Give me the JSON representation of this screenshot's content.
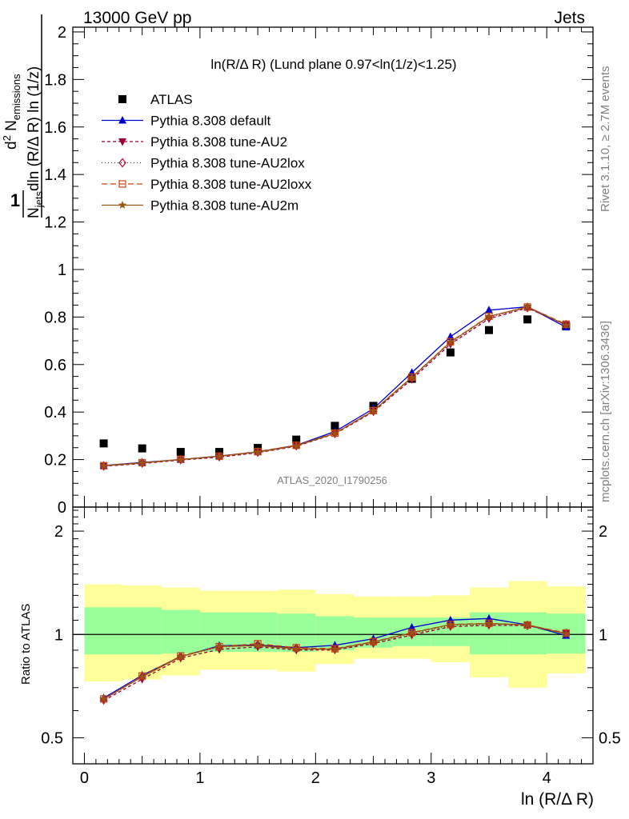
{
  "header": {
    "left": "13000 GeV pp",
    "right": "Jets"
  },
  "side_labels": {
    "rivet": "Rivet 3.1.10, ≥ 2.7M events",
    "mcplots": "mcplots.cern.ch [arXiv:1306.3436]"
  },
  "chart_data": [
    {
      "type": "scatter",
      "title": "ln(R/Δ R) (Lund plane 0.97<ln(1/z)<1.25)",
      "ylabel": "1/N_jets dN_emissions/dln(R/ΔR)dln(1/z)",
      "watermark": "ATLAS_2020_I1790256",
      "xlim": [
        -0.1,
        4.4
      ],
      "ylim": [
        0,
        2.02
      ],
      "yticks": [
        0,
        0.2,
        0.4,
        0.6,
        0.8,
        1,
        1.2,
        1.4,
        1.6,
        1.8,
        2
      ],
      "x": [
        0.167,
        0.5,
        0.833,
        1.167,
        1.5,
        1.833,
        2.167,
        2.5,
        2.833,
        3.167,
        3.5,
        3.833,
        4.167
      ],
      "legend_position": "top-left",
      "series": [
        {
          "name": "ATLAS",
          "style": "data",
          "color": "#000000",
          "marker": "square",
          "values": [
            0.268,
            0.247,
            0.232,
            0.232,
            0.249,
            0.284,
            0.342,
            0.426,
            0.54,
            0.651,
            0.745,
            0.79,
            0.762
          ]
        },
        {
          "name": "Pythia 8.308 default",
          "color": "#0000cc",
          "marker": "triangle",
          "dash": "",
          "values": [
            0.175,
            0.188,
            0.2,
            0.215,
            0.232,
            0.26,
            0.318,
            0.414,
            0.566,
            0.717,
            0.829,
            0.843,
            0.757
          ]
        },
        {
          "name": "Pythia 8.308 tune-AU2",
          "color": "#990033",
          "marker": "triangle-down",
          "dash": "4,3",
          "values": [
            0.172,
            0.183,
            0.198,
            0.21,
            0.229,
            0.256,
            0.308,
            0.401,
            0.538,
            0.686,
            0.793,
            0.838,
            0.767
          ]
        },
        {
          "name": "Pythia 8.308 tune-AU2lox",
          "color": "#aa1133",
          "marker": "diamond-open",
          "dash": "1,3",
          "values": [
            0.173,
            0.186,
            0.2,
            0.213,
            0.232,
            0.259,
            0.31,
            0.404,
            0.543,
            0.691,
            0.798,
            0.84,
            0.768
          ]
        },
        {
          "name": "Pythia 8.308 tune-AU2loxx",
          "color": "#cc4411",
          "marker": "square-open",
          "dash": "7,4",
          "values": [
            0.174,
            0.187,
            0.201,
            0.214,
            0.234,
            0.26,
            0.311,
            0.406,
            0.547,
            0.696,
            0.803,
            0.842,
            0.77
          ]
        },
        {
          "name": "Pythia 8.308 tune-AU2m",
          "color": "#995511",
          "marker": "star",
          "dash": "",
          "values": [
            0.174,
            0.186,
            0.2,
            0.214,
            0.231,
            0.258,
            0.31,
            0.405,
            0.546,
            0.695,
            0.802,
            0.843,
            0.766
          ]
        }
      ]
    },
    {
      "type": "line",
      "ylabel": "Ratio to ATLAS",
      "xlabel": "ln (R/Δ R)",
      "xlim": [
        -0.1,
        4.4
      ],
      "ylim": [
        0.42,
        2.35
      ],
      "log_y": true,
      "xticks": [
        0,
        1,
        2,
        3,
        4
      ],
      "yticks": [
        0.5,
        1,
        2
      ],
      "reference": 1,
      "x": [
        0.167,
        0.5,
        0.833,
        1.167,
        1.5,
        1.833,
        2.167,
        2.5,
        2.833,
        3.167,
        3.5,
        3.833,
        4.167
      ],
      "band_edges": [
        0,
        0.333,
        0.667,
        1,
        1.333,
        1.667,
        2,
        2.333,
        2.667,
        3,
        3.333,
        3.667,
        4,
        4.333
      ],
      "bands": {
        "stat_color": "#99ff99",
        "syst_color": "#ffff99",
        "inner_lo": [
          0.875,
          0.875,
          0.88,
          0.89,
          0.89,
          0.89,
          0.9,
          0.915,
          0.925,
          0.925,
          0.875,
          0.875,
          0.88
        ],
        "inner_hi": [
          1.2,
          1.2,
          1.18,
          1.16,
          1.16,
          1.15,
          1.13,
          1.12,
          1.12,
          1.12,
          1.16,
          1.16,
          1.15
        ],
        "outer_lo": [
          0.73,
          0.74,
          0.76,
          0.79,
          0.79,
          0.78,
          0.82,
          0.85,
          0.85,
          0.83,
          0.75,
          0.7,
          0.77
        ],
        "outer_hi": [
          1.4,
          1.39,
          1.37,
          1.34,
          1.34,
          1.35,
          1.31,
          1.29,
          1.29,
          1.3,
          1.37,
          1.43,
          1.38
        ]
      },
      "series": [
        {
          "name": "Pythia 8.308 default",
          "values": [
            0.653,
            0.761,
            0.862,
            0.927,
            0.932,
            0.915,
            0.93,
            0.972,
            1.048,
            1.101,
            1.113,
            1.067,
            0.993
          ]
        },
        {
          "name": "Pythia 8.308 tune-AU2",
          "values": [
            0.642,
            0.741,
            0.853,
            0.905,
            0.92,
            0.901,
            0.901,
            0.941,
            0.996,
            1.054,
            1.064,
            1.061,
            1.007
          ]
        },
        {
          "name": "Pythia 8.308 tune-AU2lox",
          "values": [
            0.646,
            0.753,
            0.862,
            0.918,
            0.932,
            0.912,
            0.906,
            0.948,
            1.006,
            1.061,
            1.071,
            1.063,
            1.008
          ]
        },
        {
          "name": "Pythia 8.308 tune-AU2loxx",
          "values": [
            0.649,
            0.757,
            0.866,
            0.922,
            0.94,
            0.915,
            0.909,
            0.953,
            1.013,
            1.069,
            1.078,
            1.066,
            1.01
          ]
        },
        {
          "name": "Pythia 8.308 tune-AU2m",
          "values": [
            0.649,
            0.753,
            0.862,
            0.922,
            0.928,
            0.908,
            0.906,
            0.951,
            1.011,
            1.068,
            1.076,
            1.067,
            1.005
          ]
        }
      ]
    }
  ]
}
